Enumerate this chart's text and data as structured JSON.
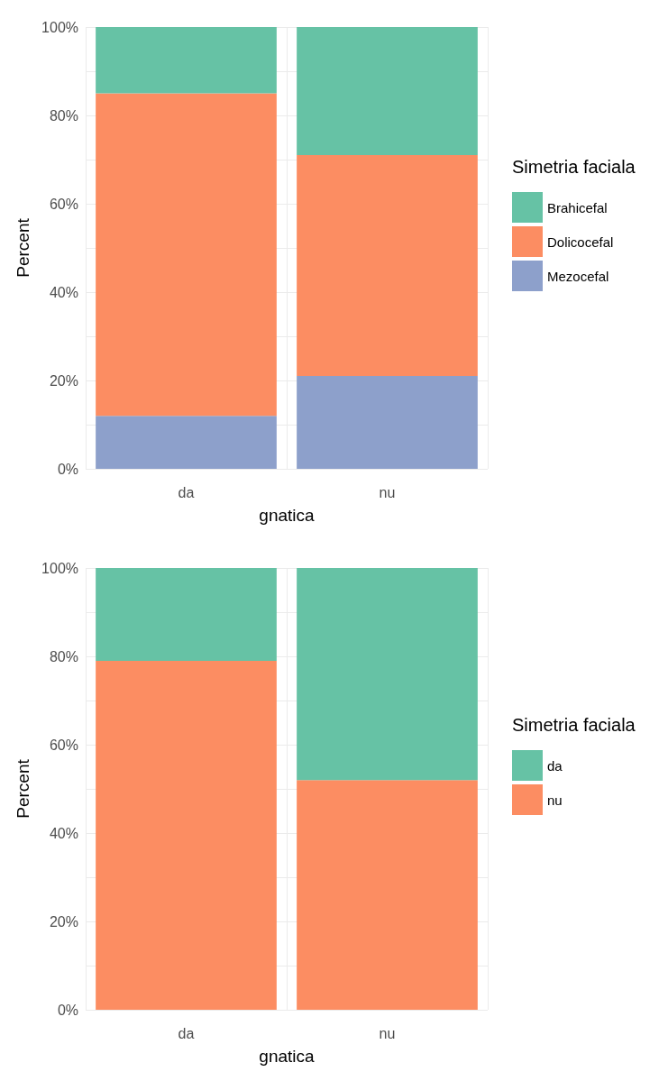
{
  "chart_data": [
    {
      "type": "bar",
      "stacked": true,
      "xlabel": "gnatica",
      "ylabel": "Percent",
      "legend_title": "Simetria faciala",
      "legend": "right",
      "grid": true,
      "categories": [
        "da",
        "nu"
      ],
      "series": [
        {
          "name": "Mezocefal",
          "color": "#8da0cb",
          "values": [
            12,
            21
          ]
        },
        {
          "name": "Dolicocefal",
          "color": "#fc8d62",
          "values": [
            73,
            50
          ]
        },
        {
          "name": "Brahicefal",
          "color": "#66c2a5",
          "values": [
            15,
            29
          ]
        }
      ],
      "ylim": [
        0,
        100
      ],
      "yticks": [
        {
          "value": 0,
          "label": "0%"
        },
        {
          "value": 10,
          "label": null
        },
        {
          "value": 20,
          "label": "20%"
        },
        {
          "value": 30,
          "label": null
        },
        {
          "value": 40,
          "label": "40%"
        },
        {
          "value": 50,
          "label": null
        },
        {
          "value": 60,
          "label": "60%"
        },
        {
          "value": 70,
          "label": null
        },
        {
          "value": 80,
          "label": "80%"
        },
        {
          "value": 90,
          "label": null
        },
        {
          "value": 100,
          "label": "100%"
        }
      ]
    },
    {
      "type": "bar",
      "stacked": true,
      "xlabel": "gnatica",
      "ylabel": "Percent",
      "legend_title": "Simetria faciala",
      "legend": "right",
      "grid": true,
      "categories": [
        "da",
        "nu"
      ],
      "series": [
        {
          "name": "nu",
          "color": "#fc8d62",
          "values": [
            79,
            52
          ]
        },
        {
          "name": "da",
          "color": "#66c2a5",
          "values": [
            21,
            48
          ]
        }
      ],
      "ylim": [
        0,
        100
      ],
      "yticks": [
        {
          "value": 0,
          "label": "0%"
        },
        {
          "value": 10,
          "label": null
        },
        {
          "value": 20,
          "label": "20%"
        },
        {
          "value": 30,
          "label": null
        },
        {
          "value": 40,
          "label": "40%"
        },
        {
          "value": 50,
          "label": null
        },
        {
          "value": 60,
          "label": "60%"
        },
        {
          "value": 70,
          "label": null
        },
        {
          "value": 80,
          "label": "80%"
        },
        {
          "value": 90,
          "label": null
        },
        {
          "value": 100,
          "label": "100%"
        }
      ]
    }
  ]
}
